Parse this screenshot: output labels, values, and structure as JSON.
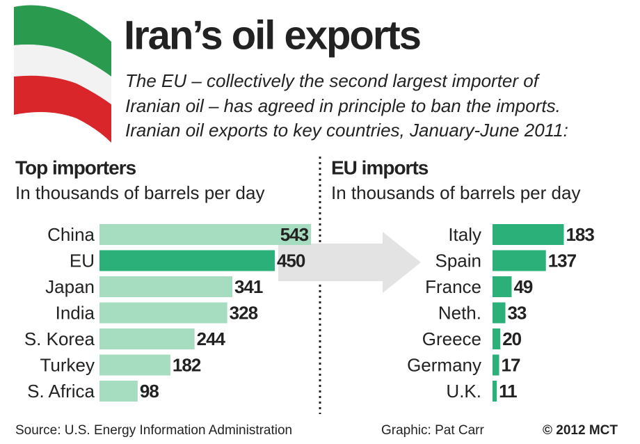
{
  "title": "Iran’s oil exports",
  "intro": [
    "The EU – collectively the second largest importer of",
    "Iranian oil – has agreed in principle to ban the imports.",
    "Iranian oil exports to key countries, January-June 2011:"
  ],
  "source": "Source: U.S. Energy Information Administration",
  "credit": "Graphic: Pat Carr",
  "copyright": "© 2012 MCT",
  "chart_data": [
    {
      "type": "bar",
      "orientation": "horizontal",
      "title": "Top importers",
      "subtitle": "In thousands of barrels per day",
      "categories": [
        "China",
        "EU",
        "Japan",
        "India",
        "S. Korea",
        "Turkey",
        "S. Africa"
      ],
      "values": [
        543,
        450,
        341,
        328,
        244,
        182,
        98
      ],
      "colors": [
        "#a6dcbf",
        "#2bb079",
        "#a6dcbf",
        "#a6dcbf",
        "#a6dcbf",
        "#a6dcbf",
        "#a6dcbf"
      ]
    },
    {
      "type": "bar",
      "orientation": "horizontal",
      "title": "EU imports",
      "subtitle": "In thousands of barrels per day",
      "categories": [
        "Italy",
        "Spain",
        "France",
        "Neth.",
        "Greece",
        "Germany",
        "U.K."
      ],
      "values": [
        183,
        137,
        49,
        33,
        20,
        17,
        11
      ],
      "colors": [
        "#2bb079",
        "#2bb079",
        "#2bb079",
        "#2bb079",
        "#2bb079",
        "#2bb079",
        "#2bb079"
      ]
    }
  ]
}
